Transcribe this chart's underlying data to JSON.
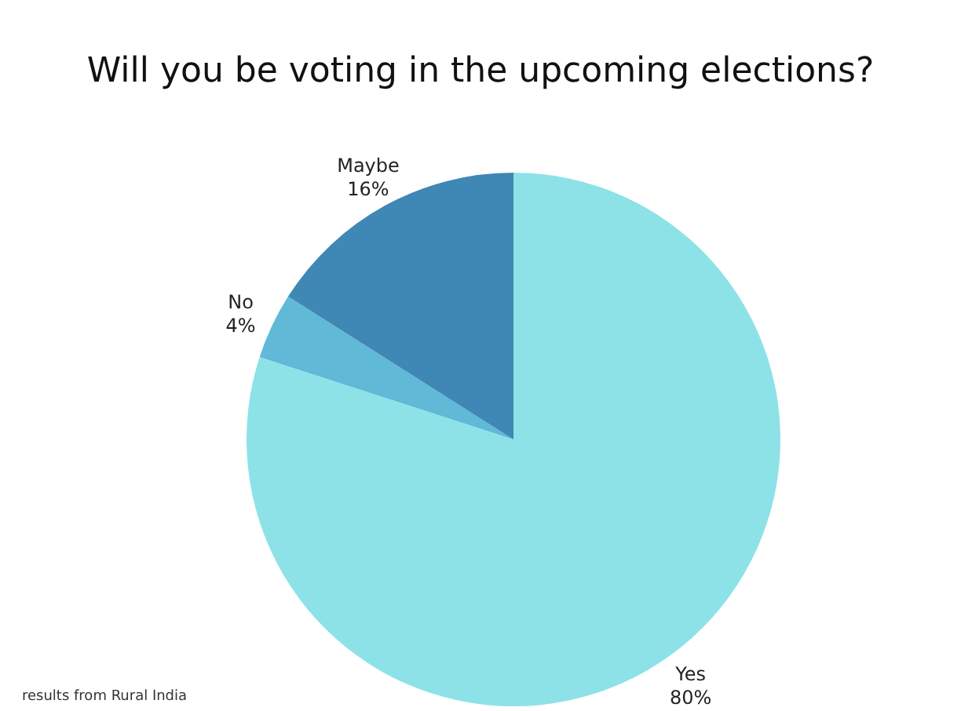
{
  "chart_data": {
    "type": "pie",
    "title": "Will you be voting in the upcoming elections?",
    "categories": [
      "Yes",
      "No",
      "Maybe"
    ],
    "values": [
      80,
      4,
      16
    ],
    "colors": [
      "#8de2e8",
      "#5fb9d7",
      "#3f87b4"
    ],
    "value_labels": [
      "80%",
      "4%",
      "16%"
    ],
    "legend": false,
    "annotations": [
      "results from Rural India"
    ]
  }
}
